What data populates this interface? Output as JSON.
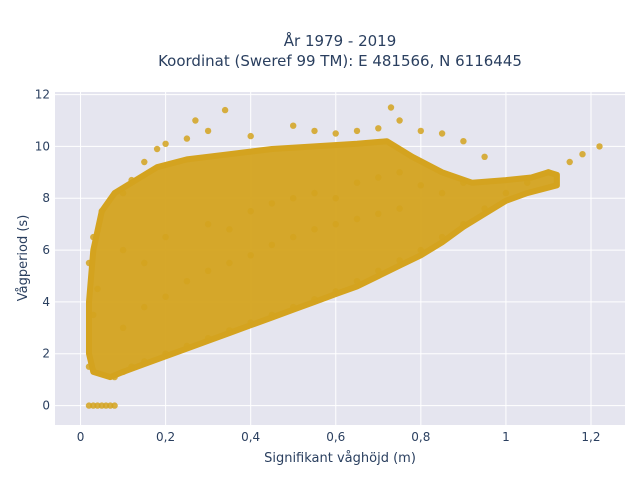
{
  "chart_data": {
    "type": "scatter",
    "title_line1": "År 1979 - 2019",
    "title_line2": "Koordinat (Sweref 99 TM): E 481566, N 6116445",
    "xlabel": "Signifikant våghöjd (m)",
    "ylabel": "Vågperiod (s)",
    "xlim": [
      -0.06,
      1.28
    ],
    "ylim": [
      -0.75,
      12.1
    ],
    "xticks": [
      0,
      0.2,
      0.4,
      0.6,
      0.8,
      1,
      1.2
    ],
    "xtick_labels": [
      "0",
      "0,2",
      "0,4",
      "0,6",
      "0,8",
      "1",
      "1,2"
    ],
    "yticks": [
      0,
      2,
      4,
      6,
      8,
      10,
      12
    ],
    "ytick_labels": [
      "0",
      "2",
      "4",
      "6",
      "8",
      "10",
      "12"
    ],
    "grid": true,
    "marker_color": "#d4a31f",
    "background_color": "#e5e5ef",
    "series": [
      {
        "points": [
          [
            0.02,
            0
          ],
          [
            0.03,
            0
          ],
          [
            0.04,
            0
          ],
          [
            0.05,
            0
          ],
          [
            0.06,
            0
          ],
          [
            0.07,
            0
          ],
          [
            0.08,
            0
          ],
          [
            0.02,
            1.5
          ],
          [
            0.03,
            3.5
          ],
          [
            0.02,
            5.5
          ],
          [
            0.03,
            6.5
          ],
          [
            0.05,
            7.5
          ],
          [
            0.04,
            4.5
          ],
          [
            0.08,
            1.1
          ],
          [
            0.1,
            1.3
          ],
          [
            0.12,
            1.5
          ],
          [
            0.15,
            1.7
          ],
          [
            0.2,
            2.0
          ],
          [
            0.25,
            2.3
          ],
          [
            0.3,
            2.6
          ],
          [
            0.35,
            2.9
          ],
          [
            0.4,
            3.2
          ],
          [
            0.45,
            3.5
          ],
          [
            0.5,
            3.8
          ],
          [
            0.55,
            4.1
          ],
          [
            0.6,
            4.4
          ],
          [
            0.65,
            4.8
          ],
          [
            0.7,
            5.2
          ],
          [
            0.75,
            5.6
          ],
          [
            0.8,
            6.0
          ],
          [
            0.85,
            6.5
          ],
          [
            0.9,
            7.0
          ],
          [
            0.95,
            7.6
          ],
          [
            1.0,
            8.2
          ],
          [
            1.05,
            8.6
          ],
          [
            1.1,
            9.0
          ],
          [
            1.15,
            9.4
          ],
          [
            1.18,
            9.7
          ],
          [
            1.22,
            10.0
          ],
          [
            0.1,
            8.2
          ],
          [
            0.12,
            8.7
          ],
          [
            0.15,
            9.4
          ],
          [
            0.18,
            9.9
          ],
          [
            0.2,
            10.1
          ],
          [
            0.25,
            10.3
          ],
          [
            0.27,
            11.0
          ],
          [
            0.3,
            10.6
          ],
          [
            0.34,
            11.4
          ],
          [
            0.4,
            10.4
          ],
          [
            0.5,
            10.8
          ],
          [
            0.55,
            10.6
          ],
          [
            0.6,
            10.5
          ],
          [
            0.65,
            10.6
          ],
          [
            0.7,
            10.7
          ],
          [
            0.73,
            11.5
          ],
          [
            0.75,
            11.0
          ],
          [
            0.8,
            10.6
          ],
          [
            0.85,
            10.5
          ],
          [
            0.9,
            10.2
          ],
          [
            0.95,
            9.6
          ],
          [
            0.1,
            6.0
          ],
          [
            0.15,
            5.5
          ],
          [
            0.2,
            6.5
          ],
          [
            0.3,
            7.0
          ],
          [
            0.35,
            6.8
          ],
          [
            0.4,
            7.5
          ],
          [
            0.45,
            7.8
          ],
          [
            0.5,
            8.0
          ],
          [
            0.55,
            8.2
          ],
          [
            0.6,
            8.0
          ],
          [
            0.65,
            8.6
          ],
          [
            0.7,
            8.8
          ],
          [
            0.75,
            9.0
          ],
          [
            0.8,
            8.5
          ],
          [
            0.85,
            8.2
          ],
          [
            0.9,
            8.6
          ],
          [
            0.1,
            3.0
          ],
          [
            0.15,
            3.8
          ],
          [
            0.2,
            4.2
          ],
          [
            0.25,
            4.8
          ],
          [
            0.3,
            5.2
          ],
          [
            0.35,
            5.5
          ],
          [
            0.4,
            5.8
          ],
          [
            0.45,
            6.2
          ],
          [
            0.5,
            6.5
          ],
          [
            0.55,
            6.8
          ],
          [
            0.6,
            7.0
          ],
          [
            0.65,
            7.2
          ],
          [
            0.7,
            7.4
          ],
          [
            0.75,
            7.6
          ]
        ]
      }
    ]
  }
}
